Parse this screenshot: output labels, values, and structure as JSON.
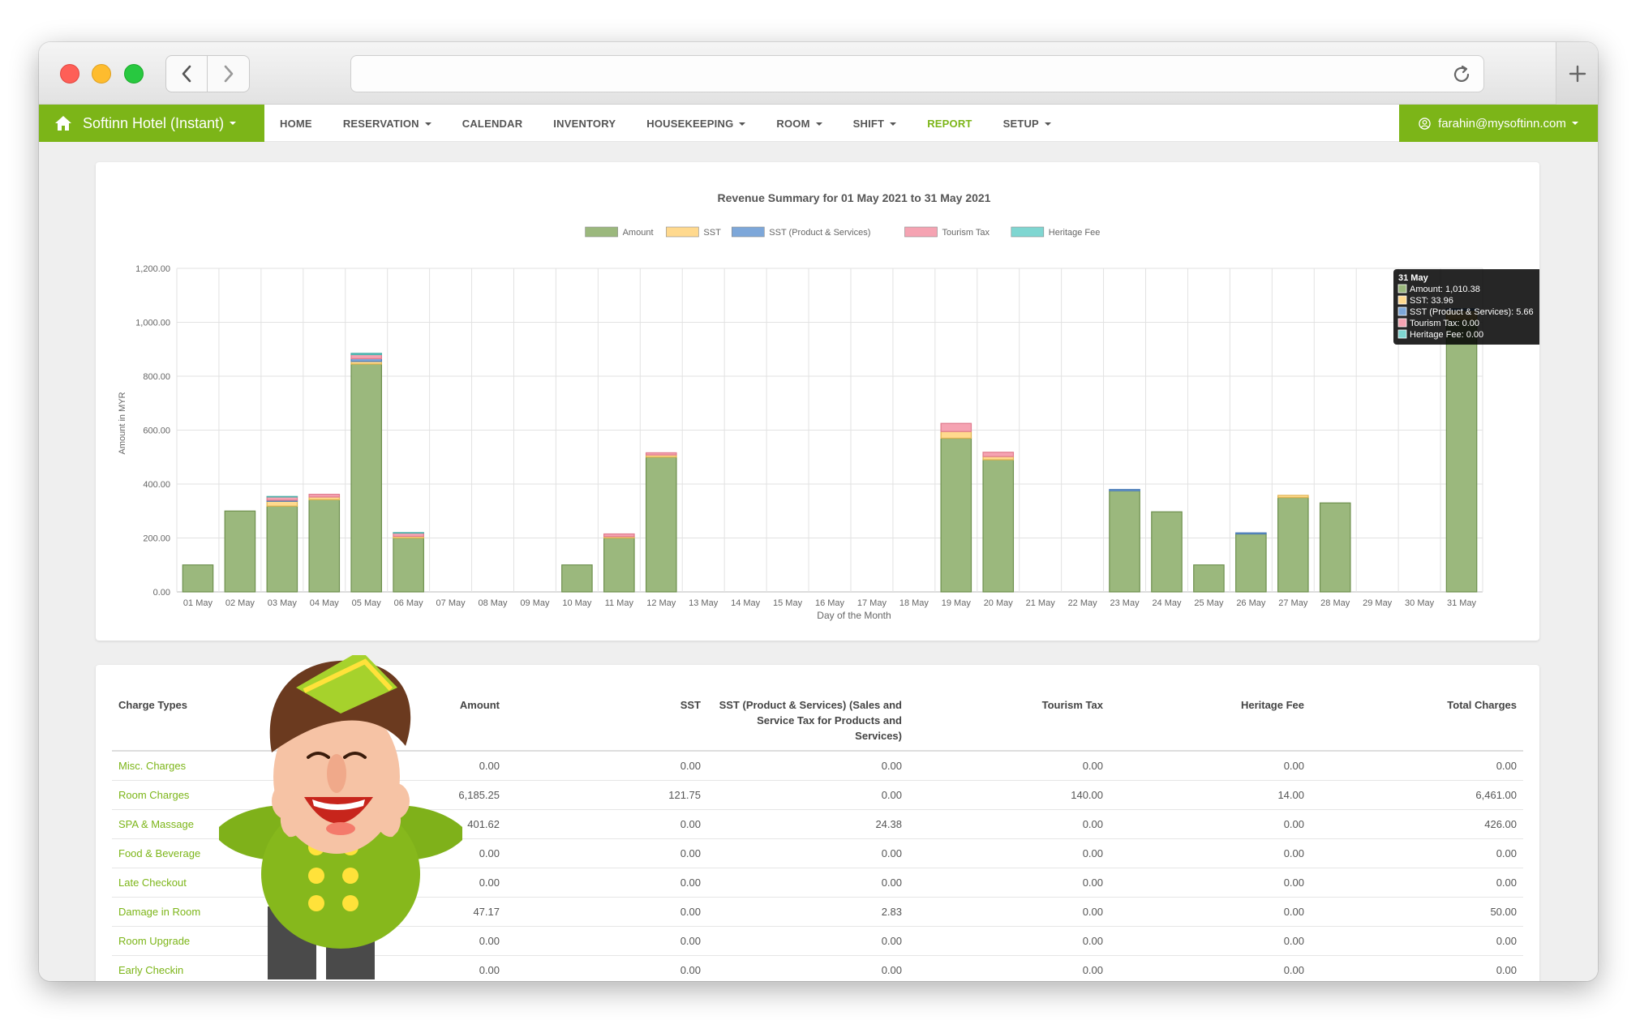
{
  "app": {
    "brand": "Softinn Hotel (Instant)",
    "brand_icon": "home-icon",
    "user_email": "farahin@mysoftinn.com",
    "accent": "#7cb518"
  },
  "nav": {
    "items": [
      {
        "label": "HOME",
        "dropdown": false,
        "active": false
      },
      {
        "label": "RESERVATION",
        "dropdown": true,
        "active": false
      },
      {
        "label": "CALENDAR",
        "dropdown": false,
        "active": false
      },
      {
        "label": "INVENTORY",
        "dropdown": false,
        "active": false
      },
      {
        "label": "HOUSEKEEPING",
        "dropdown": true,
        "active": false
      },
      {
        "label": "ROOM",
        "dropdown": true,
        "active": false
      },
      {
        "label": "SHIFT",
        "dropdown": true,
        "active": false
      },
      {
        "label": "REPORT",
        "dropdown": false,
        "active": true
      },
      {
        "label": "SETUP",
        "dropdown": true,
        "active": false
      }
    ]
  },
  "chart_data": {
    "type": "bar",
    "stacked": true,
    "title": "Revenue Summary for 01 May 2021 to 31 May 2021",
    "xlabel": "Day of the Month",
    "ylabel": "Amount in MYR",
    "ylim": [
      0,
      1200
    ],
    "yticks": [
      "0.00",
      "200.00",
      "400.00",
      "600.00",
      "800.00",
      "1,000.00",
      "1,200.00"
    ],
    "grid": true,
    "legend_position": "top",
    "categories": [
      "01 May",
      "02 May",
      "03 May",
      "04 May",
      "05 May",
      "06 May",
      "07 May",
      "08 May",
      "09 May",
      "10 May",
      "11 May",
      "12 May",
      "13 May",
      "14 May",
      "15 May",
      "16 May",
      "17 May",
      "18 May",
      "19 May",
      "20 May",
      "21 May",
      "22 May",
      "23 May",
      "24 May",
      "25 May",
      "26 May",
      "27 May",
      "28 May",
      "29 May",
      "30 May",
      "31 May"
    ],
    "series": [
      {
        "name": "Amount",
        "color": "#9bb87d",
        "values": [
          100,
          300,
          318,
          342,
          845,
          200,
          0,
          0,
          0,
          100,
          200,
          500,
          0,
          0,
          0,
          0,
          0,
          0,
          570,
          490,
          0,
          0,
          375,
          297,
          100,
          215,
          350,
          330,
          0,
          0,
          1010.38
        ]
      },
      {
        "name": "SST",
        "color": "#ffd98e",
        "values": [
          0,
          0,
          18,
          10,
          10,
          6,
          0,
          0,
          0,
          0,
          5,
          8,
          0,
          0,
          0,
          0,
          0,
          0,
          25,
          12,
          0,
          0,
          0,
          0,
          0,
          0,
          8,
          0,
          0,
          0,
          33.96
        ]
      },
      {
        "name": "SST (Product & Services)",
        "color": "#7da7d9",
        "values": [
          0,
          0,
          4,
          0,
          10,
          0,
          0,
          0,
          0,
          0,
          0,
          0,
          0,
          0,
          0,
          0,
          0,
          0,
          0,
          0,
          0,
          0,
          5,
          0,
          0,
          4,
          0,
          0,
          0,
          0,
          5.66
        ]
      },
      {
        "name": "Tourism Tax",
        "color": "#f5a3b2",
        "values": [
          0,
          0,
          12,
          10,
          15,
          12,
          0,
          0,
          0,
          0,
          10,
          8,
          0,
          0,
          0,
          0,
          0,
          0,
          30,
          16,
          0,
          0,
          0,
          0,
          0,
          0,
          0,
          0,
          0,
          0,
          0
        ]
      },
      {
        "name": "Heritage Fee",
        "color": "#7fd6d1",
        "values": [
          0,
          0,
          2,
          0,
          5,
          2,
          0,
          0,
          0,
          0,
          0,
          0,
          0,
          0,
          0,
          0,
          0,
          0,
          0,
          0,
          0,
          0,
          0,
          0,
          0,
          0,
          0,
          0,
          0,
          0,
          0
        ]
      }
    ],
    "tooltip": {
      "title": "31 May",
      "lines": [
        "Amount: 1,010.38",
        "SST: 33.96",
        "SST (Product & Services): 5.66",
        "Tourism Tax: 0.00",
        "Heritage Fee: 0.00"
      ]
    }
  },
  "table": {
    "headers": [
      "Charge Types",
      "Amount",
      "SST",
      "SST (Product & Services) (Sales and Service Tax for Products and Services)",
      "Tourism Tax",
      "Heritage Fee",
      "Total Charges"
    ],
    "rows": [
      [
        "Misc. Charges",
        "0.00",
        "0.00",
        "0.00",
        "0.00",
        "0.00",
        "0.00"
      ],
      [
        "Room Charges",
        "6,185.25",
        "121.75",
        "0.00",
        "140.00",
        "14.00",
        "6,461.00"
      ],
      [
        "SPA & Massage",
        "401.62",
        "0.00",
        "24.38",
        "0.00",
        "0.00",
        "426.00"
      ],
      [
        "Food & Beverage",
        "0.00",
        "0.00",
        "0.00",
        "0.00",
        "0.00",
        "0.00"
      ],
      [
        "Late Checkout",
        "0.00",
        "0.00",
        "0.00",
        "0.00",
        "0.00",
        "0.00"
      ],
      [
        "Damage in Room",
        "47.17",
        "0.00",
        "2.83",
        "0.00",
        "0.00",
        "50.00"
      ],
      [
        "Room Upgrade",
        "0.00",
        "0.00",
        "0.00",
        "0.00",
        "0.00",
        "0.00"
      ],
      [
        "Early Checkin",
        "0.00",
        "0.00",
        "0.00",
        "0.00",
        "0.00",
        "0.00"
      ]
    ]
  },
  "mascot": {
    "icon": "bellboy-mascot"
  }
}
